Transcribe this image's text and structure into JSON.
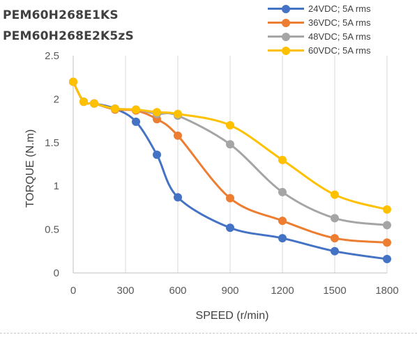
{
  "titles": [
    "PEM60H268E1KS",
    "PEM60H268E2K5zS"
  ],
  "chart_data": {
    "type": "line",
    "xlabel": "SPEED (r/min)",
    "ylabel": "TORQUE (N.m)",
    "xlim": [
      0,
      1800
    ],
    "ylim": [
      0,
      2.5
    ],
    "x_ticks": [
      0,
      300,
      600,
      900,
      1200,
      1500,
      1800
    ],
    "y_ticks": [
      0,
      0.5,
      1,
      1.5,
      2,
      2.5
    ],
    "y_tick_labels": [
      "0",
      "0.5",
      "1",
      "1.5",
      "2",
      "2.5"
    ],
    "grid": "vertical",
    "legend": "top-right",
    "series": [
      {
        "name": "24VDC; 5A rms",
        "color": "#4472C4",
        "x": [
          0,
          60,
          120,
          240,
          360,
          480,
          600,
          900,
          1200,
          1500,
          1800
        ],
        "y": [
          2.2,
          1.97,
          1.95,
          1.89,
          1.74,
          1.36,
          0.87,
          0.52,
          0.4,
          0.25,
          0.16
        ]
      },
      {
        "name": "36VDC; 5A rms",
        "color": "#ED7D31",
        "x": [
          0,
          60,
          120,
          240,
          360,
          480,
          600,
          900,
          1200,
          1500,
          1800
        ],
        "y": [
          2.2,
          1.97,
          1.95,
          1.88,
          1.87,
          1.77,
          1.58,
          0.86,
          0.6,
          0.4,
          0.35
        ]
      },
      {
        "name": "48VDC; 5A rms",
        "color": "#A5A5A5",
        "x": [
          0,
          60,
          120,
          240,
          360,
          480,
          600,
          900,
          1200,
          1500,
          1800
        ],
        "y": [
          2.2,
          1.97,
          1.95,
          1.89,
          1.88,
          1.83,
          1.81,
          1.48,
          0.93,
          0.63,
          0.55
        ]
      },
      {
        "name": "60VDC; 5A rms",
        "color": "#FFC000",
        "x": [
          0,
          60,
          120,
          240,
          360,
          480,
          600,
          900,
          1200,
          1500,
          1800
        ],
        "y": [
          2.2,
          1.97,
          1.95,
          1.89,
          1.88,
          1.85,
          1.83,
          1.7,
          1.3,
          0.9,
          0.73
        ]
      }
    ]
  }
}
